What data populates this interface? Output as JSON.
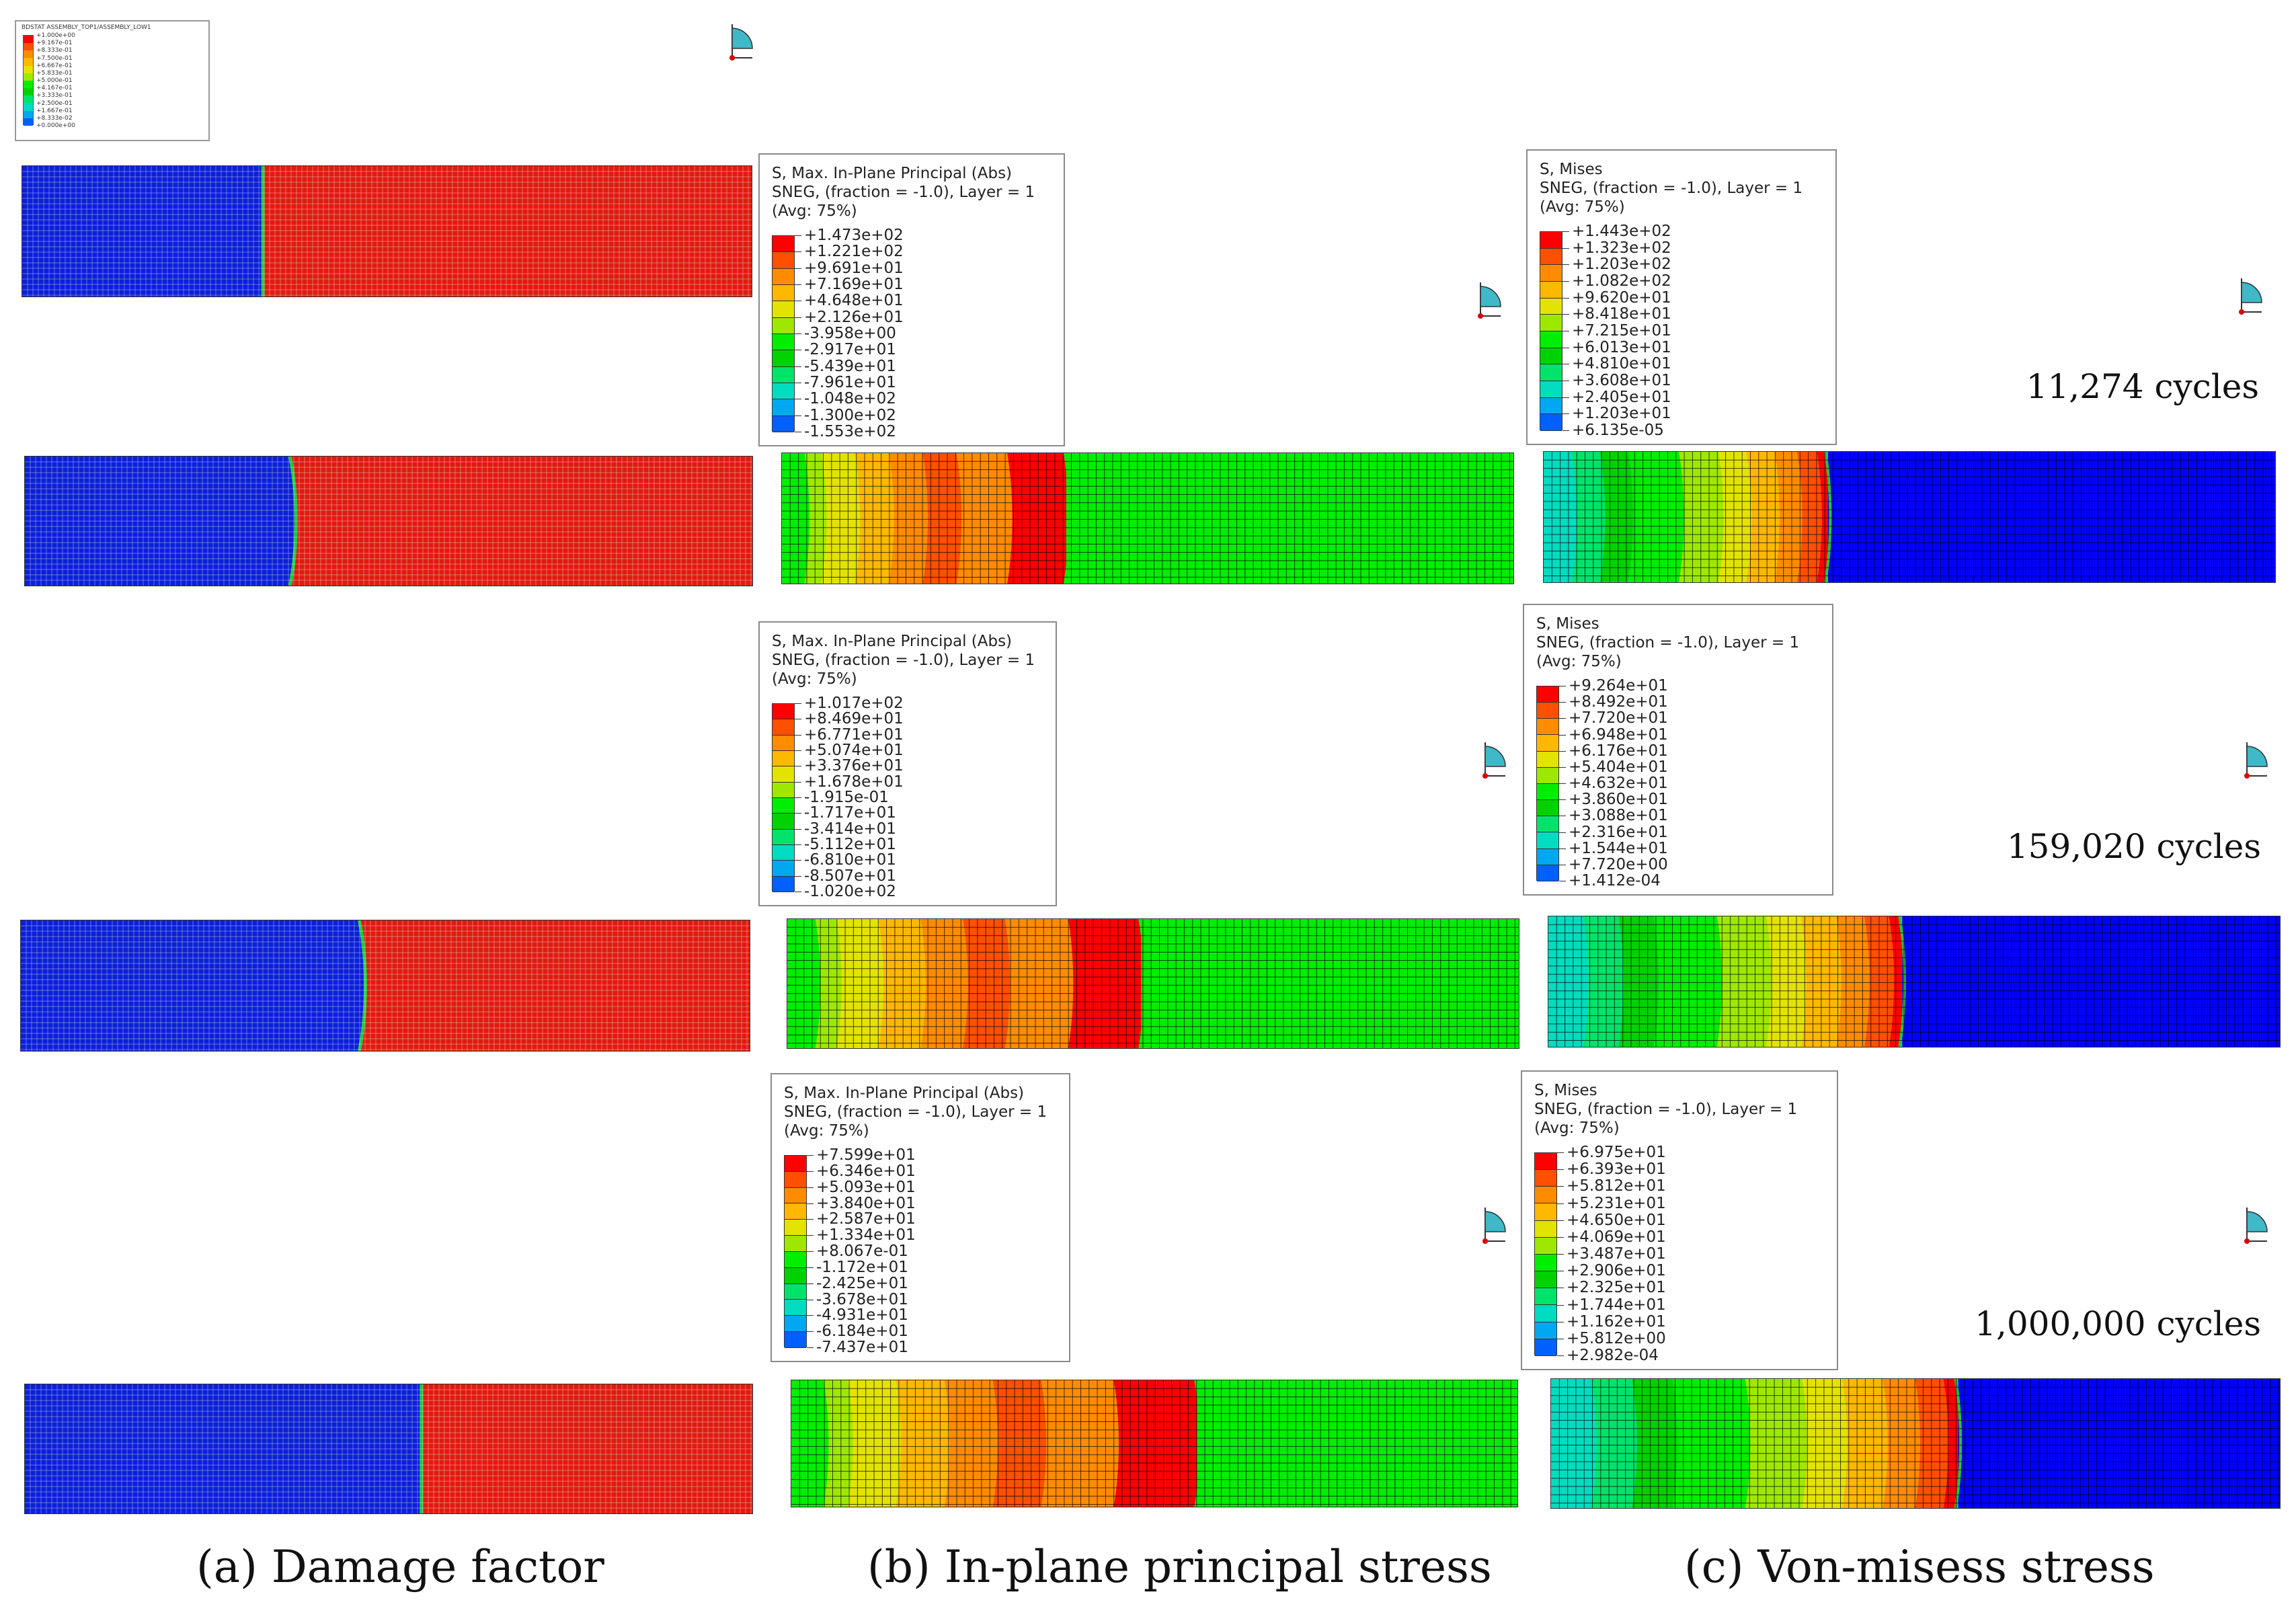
{
  "damage_legend": {
    "title": "BDSTAT   ASSEMBLY_TOP1/ASSEMBLY_LOW1",
    "values": [
      "+1.000e+00",
      "+9.167e-01",
      "+8.333e-01",
      "+7.500e-01",
      "+6.667e-01",
      "+5.833e-01",
      "+5.000e-01",
      "+4.167e-01",
      "+3.333e-01",
      "+2.500e-01",
      "+1.667e-01",
      "+8.333e-02",
      "+0.000e+00"
    ]
  },
  "legends": {
    "p1": {
      "line1": "S, Max. In-Plane Principal (Abs)",
      "line2": "SNEG, (fraction = -1.0), Layer = 1",
      "line3": "(Avg: 75%)",
      "values": [
        "+1.473e+02",
        "+1.221e+02",
        "+9.691e+01",
        "+7.169e+01",
        "+4.648e+01",
        "+2.126e+01",
        "-3.958e+00",
        "-2.917e+01",
        "-5.439e+01",
        "-7.961e+01",
        "-1.048e+02",
        "-1.300e+02",
        "-1.553e+02"
      ]
    },
    "m1": {
      "line1": "S, Mises",
      "line2": "SNEG, (fraction = -1.0), Layer = 1",
      "line3": "(Avg: 75%)",
      "values": [
        "+1.443e+02",
        "+1.323e+02",
        "+1.203e+02",
        "+1.082e+02",
        "+9.620e+01",
        "+8.418e+01",
        "+7.215e+01",
        "+6.013e+01",
        "+4.810e+01",
        "+3.608e+01",
        "+2.405e+01",
        "+1.203e+01",
        "+6.135e-05"
      ]
    },
    "p2": {
      "line1": "S, Max. In-Plane Principal (Abs)",
      "line2": "SNEG, (fraction = -1.0), Layer = 1",
      "line3": "(Avg: 75%)",
      "values": [
        "+1.017e+02",
        "+8.469e+01",
        "+6.771e+01",
        "+5.074e+01",
        "+3.376e+01",
        "+1.678e+01",
        "-1.915e-01",
        "-1.717e+01",
        "-3.414e+01",
        "-5.112e+01",
        "-6.810e+01",
        "-8.507e+01",
        "-1.020e+02"
      ]
    },
    "m2": {
      "line1": "S, Mises",
      "line2": "SNEG, (fraction = -1.0), Layer = 1",
      "line3": "(Avg: 75%)",
      "values": [
        "+9.264e+01",
        "+8.492e+01",
        "+7.720e+01",
        "+6.948e+01",
        "+6.176e+01",
        "+5.404e+01",
        "+4.632e+01",
        "+3.860e+01",
        "+3.088e+01",
        "+2.316e+01",
        "+1.544e+01",
        "+7.720e+00",
        "+1.412e-04"
      ]
    },
    "p3": {
      "line1": "S, Max. In-Plane Principal (Abs)",
      "line2": "SNEG, (fraction = -1.0), Layer = 1",
      "line3": "(Avg: 75%)",
      "values": [
        "+7.599e+01",
        "+6.346e+01",
        "+5.093e+01",
        "+3.840e+01",
        "+2.587e+01",
        "+1.334e+01",
        "+8.067e-01",
        "-1.172e+01",
        "-2.425e+01",
        "-3.678e+01",
        "-4.931e+01",
        "-6.184e+01",
        "-7.437e+01"
      ]
    },
    "m3": {
      "line1": "S, Mises",
      "line2": "SNEG, (fraction = -1.0), Layer = 1",
      "line3": "(Avg: 75%)",
      "values": [
        "+6.975e+01",
        "+6.393e+01",
        "+5.812e+01",
        "+5.231e+01",
        "+4.650e+01",
        "+4.069e+01",
        "+3.487e+01",
        "+2.906e+01",
        "+2.325e+01",
        "+1.744e+01",
        "+1.162e+01",
        "+5.812e+00",
        "+2.982e-04"
      ]
    }
  },
  "cycles": [
    "11,274 cycles",
    "159,020 cycles",
    "1,000,000 cycles"
  ],
  "captions": [
    "(a) Damage factor",
    "(b) In-plane principal stress",
    "(c) Von-misess stress"
  ],
  "colors": {
    "contour": [
      "#ff0000",
      "#ff4f00",
      "#ff8c00",
      "#ffb800",
      "#e3e300",
      "#9ee800",
      "#00ee00",
      "#00d200",
      "#00e36b",
      "#00dcc0",
      "#00a8f0",
      "#0060ff",
      "#0000ff"
    ],
    "damaged": "#0b20d8",
    "intact": "#e01a10",
    "front": "#22c63c"
  }
}
